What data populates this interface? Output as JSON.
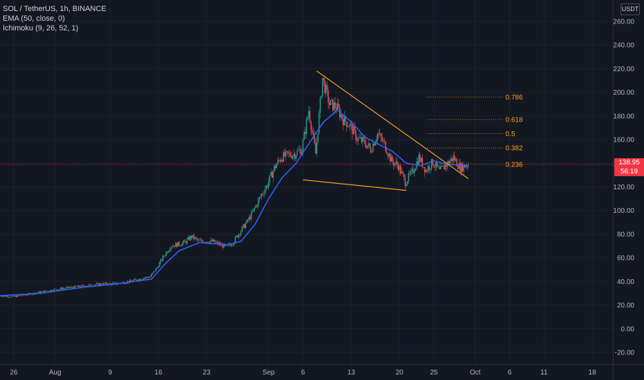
{
  "header": {
    "symbol_line": "SOL / TetherUS, 1h, BINANCE",
    "indicator_ema": "EMA (50, close, 0)",
    "indicator_ichimoku": "Ichimoku (9, 26, 52, 1)"
  },
  "price_axis": {
    "unit": "USDT"
  },
  "last_price": {
    "value": "138.95",
    "countdown": "56:19",
    "color": "#f23645"
  },
  "colors": {
    "background": "#131722",
    "ema": "#2962ff",
    "wedge": "#f7a21b",
    "fib": "#f7a21b",
    "candle_up": "#26a69a",
    "candle_down": "#ef5350",
    "last_price_line": "#f23645"
  },
  "chart_data": {
    "type": "candlestick",
    "title": "SOL / TetherUS, 1h, BINANCE",
    "ylim": [
      -28,
      270
    ],
    "y_ticks": [
      -20,
      0,
      20,
      40,
      60,
      80,
      100,
      120,
      140,
      160,
      180,
      200,
      220,
      240,
      260
    ],
    "y_tick_labels": [
      "-20.00",
      "0.00",
      "20.00",
      "40.00",
      "60.00",
      "80.00",
      "100.00",
      "120.00",
      "140.00",
      "160.00",
      "180.00",
      "200.00",
      "220.00",
      "240.00",
      "260.00"
    ],
    "x_axis": {
      "start": "2021-07-24",
      "end": "2021-10-21",
      "ticks": [
        {
          "date": "2021-07-26",
          "label": "26"
        },
        {
          "date": "2021-08-01",
          "label": "Aug"
        },
        {
          "date": "2021-08-09",
          "label": "9"
        },
        {
          "date": "2021-08-16",
          "label": "16"
        },
        {
          "date": "2021-08-23",
          "label": "23"
        },
        {
          "date": "2021-09-01",
          "label": "Sep"
        },
        {
          "date": "2021-09-06",
          "label": "6"
        },
        {
          "date": "2021-09-13",
          "label": "13"
        },
        {
          "date": "2021-09-20",
          "label": "20"
        },
        {
          "date": "2021-09-25",
          "label": "25"
        },
        {
          "date": "2021-10-01",
          "label": "Oct"
        },
        {
          "date": "2021-10-06",
          "label": "6"
        },
        {
          "date": "2021-10-11",
          "label": "11"
        },
        {
          "date": "2021-10-18",
          "label": "18"
        }
      ]
    },
    "series": [
      {
        "name": "SOL / TetherUS",
        "kind": "price",
        "points": [
          [
            "2021-07-24",
            28
          ],
          [
            "2021-07-26",
            27
          ],
          [
            "2021-07-28",
            29
          ],
          [
            "2021-07-30",
            31
          ],
          [
            "2021-08-02",
            34
          ],
          [
            "2021-08-05",
            36
          ],
          [
            "2021-08-08",
            38
          ],
          [
            "2021-08-10",
            38
          ],
          [
            "2021-08-12",
            40
          ],
          [
            "2021-08-14",
            43
          ],
          [
            "2021-08-15",
            44
          ],
          [
            "2021-08-16",
            52
          ],
          [
            "2021-08-17",
            62
          ],
          [
            "2021-08-18",
            70
          ],
          [
            "2021-08-20",
            73
          ],
          [
            "2021-08-21",
            78
          ],
          [
            "2021-08-22",
            74
          ],
          [
            "2021-08-24",
            74
          ],
          [
            "2021-08-26",
            69
          ],
          [
            "2021-08-27",
            73
          ],
          [
            "2021-08-28",
            82
          ],
          [
            "2021-08-29",
            90
          ],
          [
            "2021-08-30",
            100
          ],
          [
            "2021-08-31",
            112
          ],
          [
            "2021-09-01",
            122
          ],
          [
            "2021-09-02",
            136
          ],
          [
            "2021-09-03",
            145
          ],
          [
            "2021-09-04",
            147
          ],
          [
            "2021-09-05",
            148
          ],
          [
            "2021-09-06",
            152
          ],
          [
            "2021-09-07",
            185
          ],
          [
            "2021-09-08",
            148
          ],
          [
            "2021-09-09",
            212
          ],
          [
            "2021-09-10",
            190
          ],
          [
            "2021-09-11",
            188
          ],
          [
            "2021-09-12",
            177
          ],
          [
            "2021-09-13",
            172
          ],
          [
            "2021-09-14",
            161
          ],
          [
            "2021-09-15",
            158
          ],
          [
            "2021-09-16",
            152
          ],
          [
            "2021-09-17",
            165
          ],
          [
            "2021-09-18",
            156
          ],
          [
            "2021-09-19",
            142
          ],
          [
            "2021-09-20",
            138
          ],
          [
            "2021-09-21",
            124
          ],
          [
            "2021-09-22",
            132
          ],
          [
            "2021-09-23",
            145
          ],
          [
            "2021-09-24",
            134
          ],
          [
            "2021-09-25",
            141
          ],
          [
            "2021-09-26",
            133
          ],
          [
            "2021-09-27",
            139
          ],
          [
            "2021-09-28",
            145
          ],
          [
            "2021-09-29",
            136
          ],
          [
            "2021-09-30",
            139
          ]
        ]
      },
      {
        "name": "EMA (50, close, 0)",
        "kind": "ema",
        "points": [
          [
            "2021-07-24",
            28
          ],
          [
            "2021-07-30",
            30
          ],
          [
            "2021-08-05",
            35
          ],
          [
            "2021-08-10",
            38
          ],
          [
            "2021-08-15",
            42
          ],
          [
            "2021-08-17",
            55
          ],
          [
            "2021-08-19",
            66
          ],
          [
            "2021-08-22",
            73
          ],
          [
            "2021-08-26",
            71
          ],
          [
            "2021-08-28",
            74
          ],
          [
            "2021-08-30",
            88
          ],
          [
            "2021-09-01",
            110
          ],
          [
            "2021-09-03",
            128
          ],
          [
            "2021-09-05",
            140
          ],
          [
            "2021-09-07",
            158
          ],
          [
            "2021-09-09",
            175
          ],
          [
            "2021-09-11",
            185
          ],
          [
            "2021-09-13",
            175
          ],
          [
            "2021-09-15",
            162
          ],
          [
            "2021-09-17",
            156
          ],
          [
            "2021-09-19",
            150
          ],
          [
            "2021-09-21",
            140
          ],
          [
            "2021-09-23",
            138
          ],
          [
            "2021-09-25",
            142
          ],
          [
            "2021-09-27",
            139
          ],
          [
            "2021-09-30",
            138
          ]
        ]
      }
    ],
    "wedge_upper": [
      [
        "2021-09-08",
        218
      ],
      [
        "2021-09-30",
        127
      ]
    ],
    "wedge_lower": [
      [
        "2021-09-06",
        126
      ],
      [
        "2021-09-21",
        117
      ]
    ],
    "fib_levels": [
      {
        "label": "0.786",
        "value": 196
      },
      {
        "label": "0.618",
        "value": 177
      },
      {
        "label": "0.5",
        "value": 165
      },
      {
        "label": "0.382",
        "value": 153
      },
      {
        "label": "0.236",
        "value": 139
      }
    ],
    "fib_range": [
      "2021-09-24",
      "2021-10-05"
    ],
    "last_price": 138.95
  }
}
